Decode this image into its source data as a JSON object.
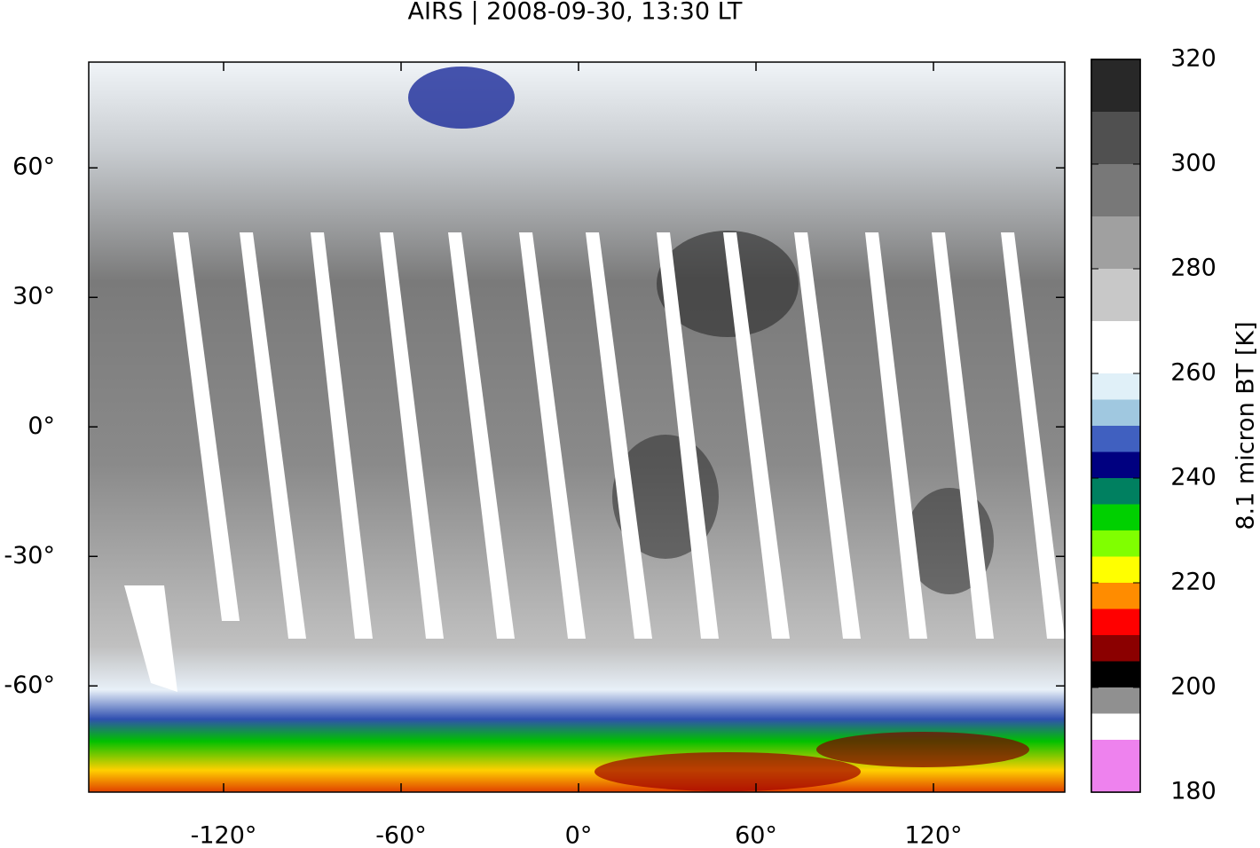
{
  "chart_data": {
    "type": "map",
    "title": "AIRS | 2008-09-30, 13:30 LT",
    "xlim": [
      -165.6,
      164.4
    ],
    "ylim": [
      -84.6,
      84.5
    ],
    "xticks": [
      {
        "value": -120,
        "label": "-120°"
      },
      {
        "value": -60,
        "label": "-60°"
      },
      {
        "value": 0,
        "label": "0°"
      },
      {
        "value": 60,
        "label": "60°"
      },
      {
        "value": 120,
        "label": "120°"
      }
    ],
    "yticks": [
      {
        "value": -60,
        "label": "-60°"
      },
      {
        "value": -30,
        "label": "-30°"
      },
      {
        "value": 0,
        "label": "0°"
      },
      {
        "value": 30,
        "label": "30°"
      },
      {
        "value": 60,
        "label": "60°"
      }
    ],
    "colorbar": {
      "label": "8.1 micron BT [K]",
      "lim": [
        180,
        320
      ],
      "ticks": [
        180,
        200,
        220,
        240,
        260,
        280,
        300,
        320
      ],
      "colormap": [
        {
          "value": 180,
          "color": "#ee82ee"
        },
        {
          "value": 190,
          "color": "#ffffff"
        },
        {
          "value": 195,
          "color": "#909090"
        },
        {
          "value": 200,
          "color": "#000000"
        },
        {
          "value": 205,
          "color": "#8b0000"
        },
        {
          "value": 210,
          "color": "#ff0000"
        },
        {
          "value": 215,
          "color": "#ff8c00"
        },
        {
          "value": 220,
          "color": "#ffff00"
        },
        {
          "value": 225,
          "color": "#80ff00"
        },
        {
          "value": 230,
          "color": "#00d000"
        },
        {
          "value": 235,
          "color": "#008060"
        },
        {
          "value": 240,
          "color": "#000080"
        },
        {
          "value": 245,
          "color": "#4060c0"
        },
        {
          "value": 250,
          "color": "#a0c8e0"
        },
        {
          "value": 255,
          "color": "#e0f0f8"
        },
        {
          "value": 260,
          "color": "#ffffff"
        },
        {
          "value": 270,
          "color": "#c8c8c8"
        },
        {
          "value": 280,
          "color": "#a0a0a0"
        },
        {
          "value": 290,
          "color": "#787878"
        },
        {
          "value": 300,
          "color": "#505050"
        },
        {
          "value": 310,
          "color": "#282828"
        },
        {
          "value": 320,
          "color": "#000000"
        }
      ]
    }
  }
}
